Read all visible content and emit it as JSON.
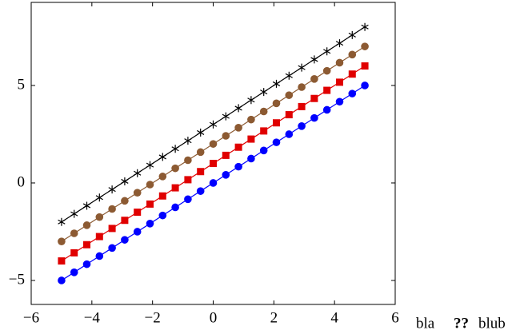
{
  "chart_data": {
    "type": "line",
    "x": [
      -5,
      -4.5833,
      -4.1667,
      -3.75,
      -3.3333,
      -2.9167,
      -2.5,
      -2.0833,
      -1.6667,
      -1.25,
      -0.8333,
      -0.4167,
      0,
      0.4167,
      0.8333,
      1.25,
      1.6667,
      2.0833,
      2.5,
      2.9167,
      3.3333,
      3.75,
      4.1667,
      4.5833,
      5
    ],
    "series": [
      {
        "color": "#0000ff",
        "marker": "circle",
        "values": [
          -5,
          -4.5833,
          -4.1667,
          -3.75,
          -3.3333,
          -2.9167,
          -2.5,
          -2.0833,
          -1.6667,
          -1.25,
          -0.8333,
          -0.4167,
          0,
          0.4167,
          0.8333,
          1.25,
          1.6667,
          2.0833,
          2.5,
          2.9167,
          3.3333,
          3.75,
          4.1667,
          4.5833,
          5
        ]
      },
      {
        "color": "#e00000",
        "marker": "square",
        "values": [
          -4,
          -3.5833,
          -3.1667,
          -2.75,
          -2.3333,
          -1.9167,
          -1.5,
          -1.0833,
          -0.6667,
          -0.25,
          0.1667,
          0.5833,
          1,
          1.4167,
          1.8333,
          2.25,
          2.6667,
          3.0833,
          3.5,
          3.9167,
          4.3333,
          4.75,
          5.1667,
          5.5833,
          6
        ]
      },
      {
        "color": "#8c5a32",
        "marker": "circle",
        "values": [
          -3,
          -2.5833,
          -2.1667,
          -1.75,
          -1.3333,
          -0.9167,
          -0.5,
          -0.0833,
          0.3333,
          0.75,
          1.1667,
          1.5833,
          2,
          2.4167,
          2.8333,
          3.25,
          3.6667,
          4.0833,
          4.5,
          4.9167,
          5.3333,
          5.75,
          6.1667,
          6.5833,
          7
        ]
      },
      {
        "color": "#000000",
        "marker": "star",
        "values": [
          -2,
          -1.5833,
          -1.1667,
          -0.75,
          -0.3333,
          0.0833,
          0.5,
          0.9167,
          1.3333,
          1.75,
          2.1667,
          2.5833,
          3,
          3.4167,
          3.8333,
          4.25,
          4.6667,
          5.0833,
          5.5,
          5.9167,
          6.3333,
          6.75,
          7.1667,
          7.5833,
          8
        ]
      }
    ],
    "xlim": [
      -6,
      6
    ],
    "ylim": [
      -6.23,
      9.26
    ],
    "xticks": [
      {
        "value": -6,
        "label": "−6"
      },
      {
        "value": -4,
        "label": "−4"
      },
      {
        "value": -2,
        "label": "−2"
      },
      0,
      2,
      4,
      6
    ],
    "yticks": [
      {
        "value": -5,
        "label": "−5"
      },
      0,
      5
    ],
    "annotations": [
      "bla",
      "??",
      "blub"
    ]
  }
}
